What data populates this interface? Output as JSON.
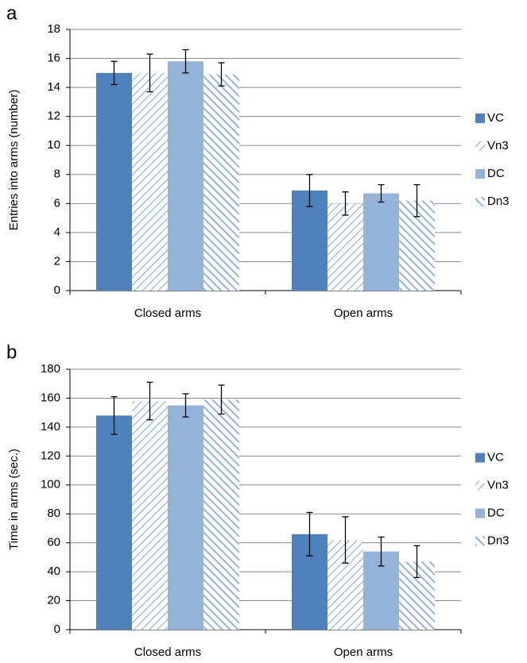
{
  "chart_data": [
    {
      "type": "bar",
      "panel_label": "a",
      "y_label": "Entries into arms (number)",
      "categories": [
        "Closed arms",
        "Open arms"
      ],
      "series": [
        {
          "name": "VC",
          "color": "#4f81bd",
          "pattern": "solid",
          "values": [
            15,
            6.9
          ],
          "errors": [
            0.8,
            1.1
          ]
        },
        {
          "name": "Vn3",
          "color": "#95b3d7",
          "pattern": "hatch-right",
          "values": [
            15,
            6.0
          ],
          "errors": [
            1.3,
            0.8
          ]
        },
        {
          "name": "DC",
          "color": "#95b3d7",
          "pattern": "solid",
          "values": [
            15.8,
            6.7
          ],
          "errors": [
            0.8,
            0.6
          ]
        },
        {
          "name": "Dn3",
          "color": "#95b3d7",
          "pattern": "hatch-left",
          "values": [
            14.9,
            6.2
          ],
          "errors": [
            0.8,
            1.1
          ]
        }
      ],
      "ylim": [
        0,
        18
      ],
      "yticks": [
        0,
        2,
        4,
        6,
        8,
        10,
        12,
        14,
        16,
        18
      ],
      "grid": true,
      "legend": "right"
    },
    {
      "type": "bar",
      "panel_label": "b",
      "y_label": "Time in arms (sec.)",
      "categories": [
        "Closed arms",
        "Open arms"
      ],
      "series": [
        {
          "name": "VC",
          "color": "#4f81bd",
          "pattern": "solid",
          "values": [
            148,
            66
          ],
          "errors": [
            13,
            15
          ]
        },
        {
          "name": "Vn3",
          "color": "#95b3d7",
          "pattern": "hatch-right",
          "values": [
            158,
            62
          ],
          "errors": [
            13,
            16
          ]
        },
        {
          "name": "DC",
          "color": "#95b3d7",
          "pattern": "solid",
          "values": [
            155,
            54
          ],
          "errors": [
            8,
            10
          ]
        },
        {
          "name": "Dn3",
          "color": "#95b3d7",
          "pattern": "hatch-left",
          "values": [
            159,
            47
          ],
          "errors": [
            10,
            11
          ]
        }
      ],
      "ylim": [
        0,
        180
      ],
      "yticks": [
        0,
        20,
        40,
        60,
        80,
        100,
        120,
        140,
        160,
        180
      ],
      "grid": true,
      "legend": "right"
    }
  ]
}
